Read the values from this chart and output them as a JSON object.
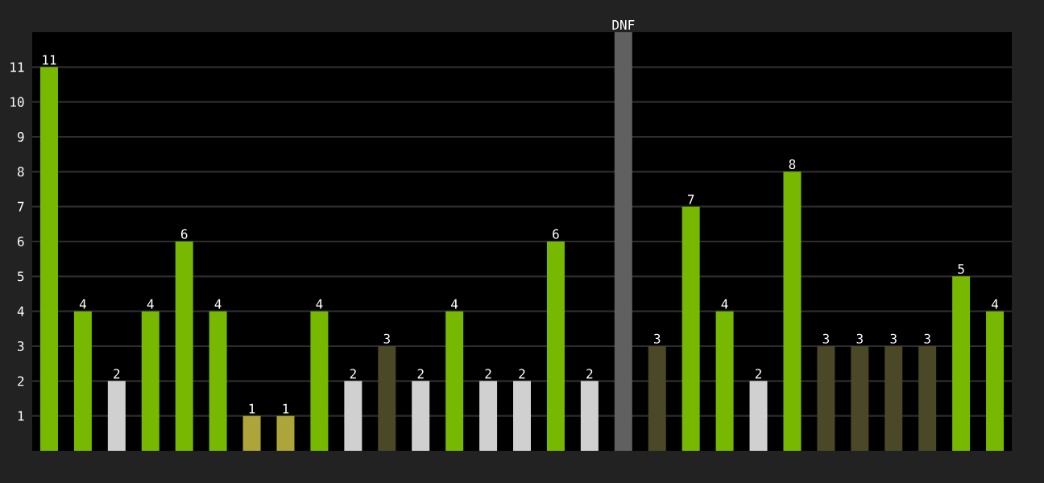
{
  "chart_data": {
    "type": "bar",
    "categories": [
      null,
      null,
      null,
      null,
      null,
      null,
      null,
      null,
      null,
      null,
      null,
      null,
      null,
      null,
      null,
      null,
      null,
      null,
      null,
      null,
      null,
      null,
      null,
      null,
      null,
      null,
      null,
      null,
      null
    ],
    "values": [
      11,
      4,
      2,
      4,
      6,
      4,
      1,
      1,
      4,
      2,
      3,
      2,
      4,
      2,
      2,
      6,
      2,
      12,
      3,
      7,
      4,
      2,
      8,
      3,
      3,
      3,
      3,
      5,
      4
    ],
    "value_labels": [
      "11",
      "4",
      "2",
      "4",
      "6",
      "4",
      "1",
      "1",
      "4",
      "2",
      "3",
      "2",
      "4",
      "2",
      "2",
      "6",
      "2",
      "DNF",
      "3",
      "7",
      "4",
      "2",
      "8",
      "3",
      "3",
      "3",
      "3",
      "5",
      "4"
    ],
    "colors": [
      "#76b900",
      "#76b900",
      "#d0d0d0",
      "#76b900",
      "#76b900",
      "#76b900",
      "#ada53a",
      "#ada53a",
      "#76b900",
      "#d0d0d0",
      "#4b4827",
      "#d0d0d0",
      "#76b900",
      "#d0d0d0",
      "#d0d0d0",
      "#76b900",
      "#d0d0d0",
      "#606060",
      "#4b4827",
      "#76b900",
      "#76b900",
      "#d0d0d0",
      "#76b900",
      "#4b4827",
      "#4b4827",
      "#4b4827",
      "#4b4827",
      "#76b900",
      "#76b900"
    ],
    "ylim": [
      0,
      12
    ],
    "yticks": [
      1,
      2,
      3,
      4,
      5,
      6,
      7,
      8,
      9,
      10,
      11
    ],
    "grid": "y"
  }
}
